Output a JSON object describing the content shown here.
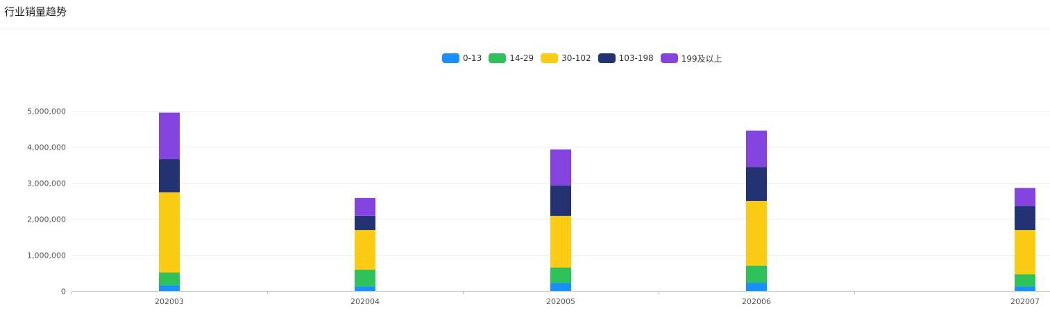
{
  "panel": {
    "title": "行业销量趋势"
  },
  "chart_data": {
    "type": "bar",
    "stacked": true,
    "title": "",
    "xlabel": "",
    "ylabel": "",
    "ylim": [
      0,
      5000000
    ],
    "yticks": [
      "0",
      "1,000,000",
      "2,000,000",
      "3,000,000",
      "4,000,000",
      "5,000,000"
    ],
    "yticks_values": [
      0,
      1000000,
      2000000,
      3000000,
      4000000,
      5000000
    ],
    "grid": true,
    "legend_position": "top-center",
    "categories": [
      "202003",
      "202004",
      "202005",
      "202006",
      "202007"
    ],
    "series": [
      {
        "name": "0-13",
        "color": "#1890ff",
        "values": [
          160000,
          130000,
          220000,
          230000,
          130000
        ]
      },
      {
        "name": "14-29",
        "color": "#2fc25b",
        "values": [
          350000,
          460000,
          430000,
          470000,
          330000
        ]
      },
      {
        "name": "30-102",
        "color": "#facc14",
        "values": [
          2230000,
          1100000,
          1430000,
          1800000,
          1230000
        ]
      },
      {
        "name": "103-198",
        "color": "#223273",
        "values": [
          920000,
          390000,
          850000,
          940000,
          670000
        ]
      },
      {
        "name": "199及以上",
        "color": "#8543e0",
        "values": [
          1290000,
          500000,
          1000000,
          1010000,
          500000
        ]
      }
    ]
  }
}
